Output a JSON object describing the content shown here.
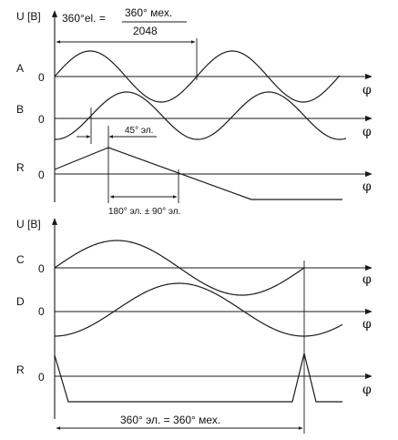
{
  "top_panel": {
    "y_axis_label": "U [B]",
    "formula": {
      "lhs": "360°el. =",
      "numerator": "360° мех.",
      "denominator": "2048"
    },
    "channels": [
      {
        "name": "A",
        "zero": "0",
        "axis": "φ"
      },
      {
        "name": "B",
        "zero": "0",
        "axis": "φ"
      },
      {
        "name": "R",
        "zero": "0",
        "axis": "φ"
      }
    ],
    "phase_shift_label": "45° эл.",
    "reference_width_label": "180° эл. ± 90° эл."
  },
  "bottom_panel": {
    "y_axis_label": "U [B]",
    "channels": [
      {
        "name": "C",
        "zero": "0",
        "axis": "φ"
      },
      {
        "name": "D",
        "zero": "0",
        "axis": "φ"
      },
      {
        "name": "R",
        "zero": "0",
        "axis": "φ"
      }
    ],
    "period_label": "360° эл. = 360° мех."
  }
}
